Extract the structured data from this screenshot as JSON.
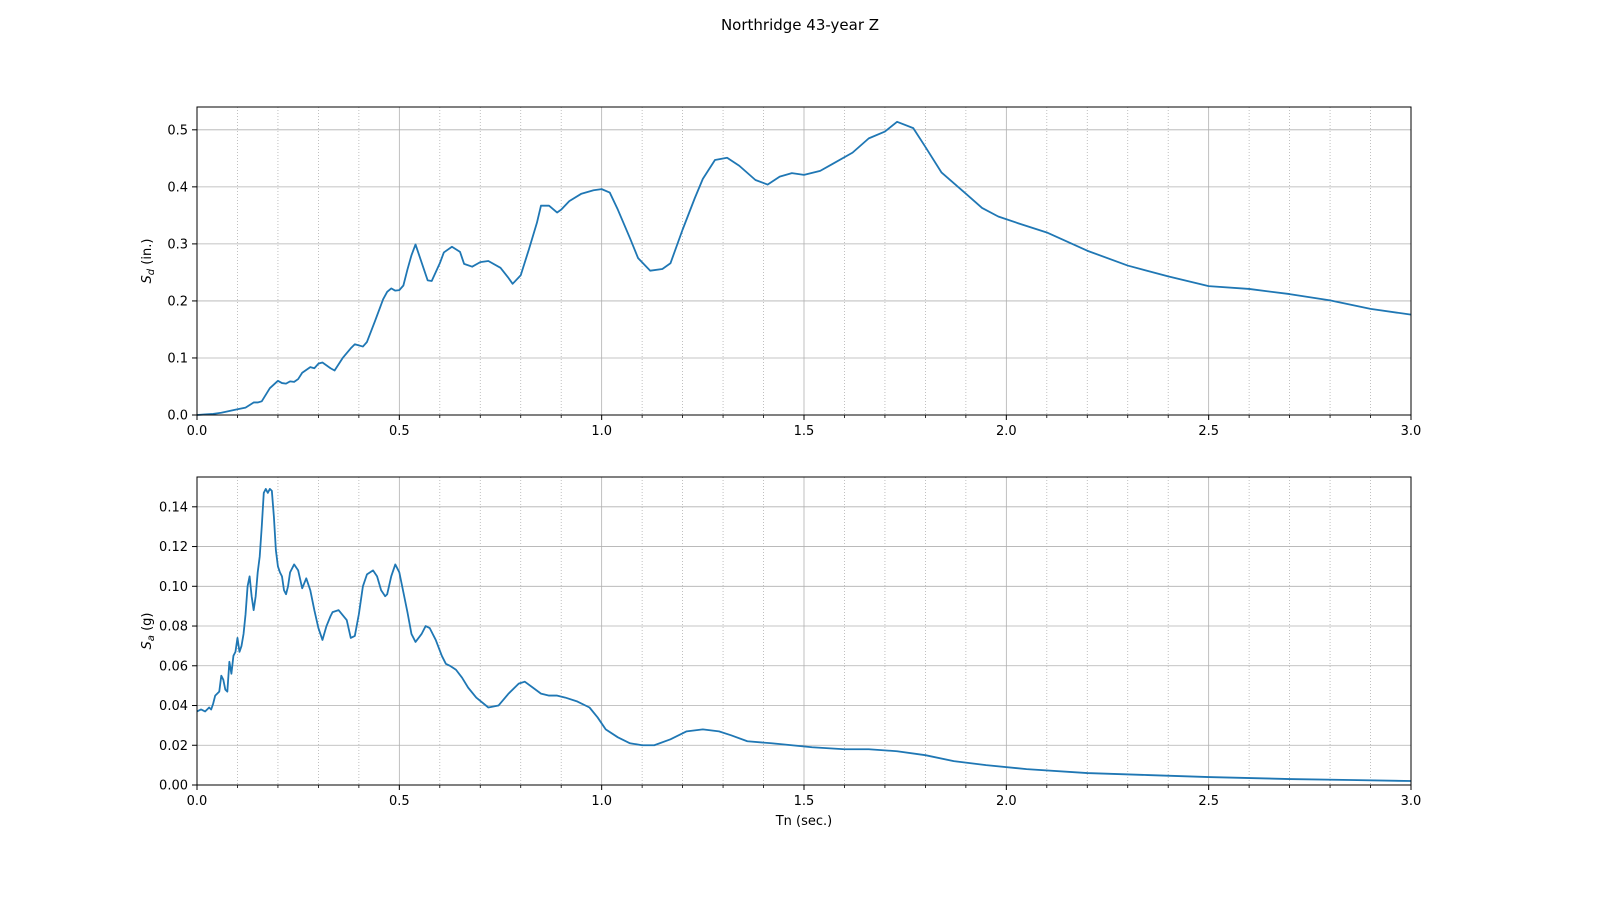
{
  "figure_title": "Northridge 43-year Z",
  "colors": {
    "series": "#1f77b4",
    "grid": "#b0b0b0",
    "axes": "#000000"
  },
  "chart_data": [
    {
      "type": "line",
      "title": "",
      "xlabel": "",
      "ylabel": "Sd (in.)",
      "ylabel_main": "S",
      "ylabel_sub": "d",
      "ylabel_unit": " (in.)",
      "xlim": [
        0.0,
        3.0
      ],
      "ylim": [
        0.0,
        0.54
      ],
      "xticks": [
        0.0,
        0.5,
        1.0,
        1.5,
        2.0,
        2.5,
        3.0
      ],
      "xtick_labels": [
        "0.0",
        "0.5",
        "1.0",
        "1.5",
        "2.0",
        "2.5",
        "3.0"
      ],
      "yticks": [
        0.0,
        0.1,
        0.2,
        0.3,
        0.4,
        0.5
      ],
      "ytick_labels": [
        "0.0",
        "0.1",
        "0.2",
        "0.3",
        "0.4",
        "0.5"
      ],
      "x_minor_step": 0.1,
      "grid": true,
      "series": [
        {
          "x": [
            0.0,
            0.02,
            0.04,
            0.06,
            0.08,
            0.1,
            0.12,
            0.14,
            0.15,
            0.16,
            0.18,
            0.2,
            0.21,
            0.22,
            0.23,
            0.24,
            0.25,
            0.26,
            0.28,
            0.29,
            0.3,
            0.31,
            0.33,
            0.34,
            0.36,
            0.38,
            0.39,
            0.41,
            0.42,
            0.44,
            0.46,
            0.47,
            0.48,
            0.49,
            0.5,
            0.51,
            0.52,
            0.53,
            0.54,
            0.57,
            0.58,
            0.6,
            0.61,
            0.63,
            0.65,
            0.66,
            0.68,
            0.7,
            0.72,
            0.75,
            0.77,
            0.78,
            0.8,
            0.82,
            0.84,
            0.85,
            0.87,
            0.89,
            0.9,
            0.92,
            0.95,
            0.98,
            1.0,
            1.02,
            1.04,
            1.07,
            1.09,
            1.12,
            1.15,
            1.17,
            1.2,
            1.23,
            1.25,
            1.28,
            1.31,
            1.34,
            1.38,
            1.41,
            1.44,
            1.47,
            1.5,
            1.54,
            1.57,
            1.62,
            1.66,
            1.7,
            1.73,
            1.77,
            1.8,
            1.84,
            1.9,
            1.94,
            1.98,
            2.03,
            2.1,
            2.2,
            2.3,
            2.4,
            2.5,
            2.6,
            2.7,
            2.8,
            2.9,
            3.0
          ],
          "y": [
            0.0,
            0.001,
            0.002,
            0.004,
            0.007,
            0.01,
            0.013,
            0.022,
            0.022,
            0.024,
            0.047,
            0.06,
            0.056,
            0.055,
            0.059,
            0.058,
            0.063,
            0.074,
            0.084,
            0.082,
            0.09,
            0.092,
            0.082,
            0.078,
            0.1,
            0.117,
            0.124,
            0.12,
            0.128,
            0.165,
            0.203,
            0.216,
            0.222,
            0.218,
            0.219,
            0.227,
            0.255,
            0.28,
            0.299,
            0.236,
            0.235,
            0.266,
            0.285,
            0.295,
            0.286,
            0.265,
            0.26,
            0.268,
            0.27,
            0.258,
            0.24,
            0.23,
            0.245,
            0.29,
            0.337,
            0.367,
            0.367,
            0.355,
            0.36,
            0.375,
            0.388,
            0.394,
            0.396,
            0.39,
            0.36,
            0.31,
            0.275,
            0.253,
            0.256,
            0.266,
            0.325,
            0.38,
            0.414,
            0.447,
            0.451,
            0.437,
            0.412,
            0.404,
            0.418,
            0.424,
            0.421,
            0.428,
            0.44,
            0.46,
            0.485,
            0.497,
            0.514,
            0.503,
            0.47,
            0.425,
            0.388,
            0.363,
            0.348,
            0.336,
            0.32,
            0.288,
            0.262,
            0.243,
            0.226,
            0.221,
            0.212,
            0.201,
            0.186,
            0.176
          ]
        }
      ]
    },
    {
      "type": "line",
      "title": "",
      "xlabel": "Tn (sec.)",
      "ylabel": "Sa (g)",
      "ylabel_main": "S",
      "ylabel_sub": "a",
      "ylabel_unit": " (g)",
      "xlim": [
        0.0,
        3.0
      ],
      "ylim": [
        0.0,
        0.155
      ],
      "xticks": [
        0.0,
        0.5,
        1.0,
        1.5,
        2.0,
        2.5,
        3.0
      ],
      "xtick_labels": [
        "0.0",
        "0.5",
        "1.0",
        "1.5",
        "2.0",
        "2.5",
        "3.0"
      ],
      "yticks": [
        0.0,
        0.02,
        0.04,
        0.06,
        0.08,
        0.1,
        0.12,
        0.14
      ],
      "ytick_labels": [
        "0.00",
        "0.02",
        "0.04",
        "0.06",
        "0.08",
        "0.10",
        "0.12",
        "0.14"
      ],
      "x_minor_step": 0.1,
      "grid": true,
      "series": [
        {
          "x": [
            0.0,
            0.01,
            0.02,
            0.03,
            0.035,
            0.04,
            0.045,
            0.05,
            0.055,
            0.06,
            0.065,
            0.07,
            0.075,
            0.08,
            0.085,
            0.09,
            0.095,
            0.1,
            0.105,
            0.11,
            0.115,
            0.12,
            0.125,
            0.13,
            0.135,
            0.14,
            0.145,
            0.15,
            0.155,
            0.16,
            0.165,
            0.17,
            0.175,
            0.18,
            0.185,
            0.19,
            0.195,
            0.2,
            0.205,
            0.21,
            0.215,
            0.22,
            0.225,
            0.23,
            0.24,
            0.25,
            0.26,
            0.27,
            0.28,
            0.29,
            0.3,
            0.31,
            0.32,
            0.33,
            0.335,
            0.35,
            0.37,
            0.38,
            0.39,
            0.4,
            0.41,
            0.42,
            0.435,
            0.445,
            0.455,
            0.465,
            0.47,
            0.48,
            0.49,
            0.5,
            0.51,
            0.52,
            0.53,
            0.54,
            0.555,
            0.565,
            0.575,
            0.59,
            0.605,
            0.615,
            0.625,
            0.64,
            0.655,
            0.67,
            0.69,
            0.72,
            0.745,
            0.77,
            0.795,
            0.81,
            0.83,
            0.85,
            0.87,
            0.89,
            0.91,
            0.94,
            0.97,
            0.99,
            1.01,
            1.04,
            1.07,
            1.1,
            1.13,
            1.17,
            1.21,
            1.25,
            1.29,
            1.32,
            1.36,
            1.42,
            1.47,
            1.52,
            1.6,
            1.66,
            1.73,
            1.8,
            1.87,
            1.95,
            2.05,
            2.2,
            2.35,
            2.5,
            2.7,
            2.85,
            3.0
          ],
          "y": [
            0.037,
            0.038,
            0.037,
            0.039,
            0.038,
            0.041,
            0.045,
            0.046,
            0.047,
            0.055,
            0.053,
            0.048,
            0.047,
            0.062,
            0.056,
            0.065,
            0.067,
            0.074,
            0.067,
            0.07,
            0.076,
            0.086,
            0.1,
            0.105,
            0.095,
            0.088,
            0.095,
            0.107,
            0.115,
            0.13,
            0.147,
            0.149,
            0.147,
            0.149,
            0.148,
            0.135,
            0.118,
            0.11,
            0.107,
            0.105,
            0.098,
            0.096,
            0.1,
            0.107,
            0.111,
            0.108,
            0.099,
            0.104,
            0.098,
            0.088,
            0.079,
            0.073,
            0.08,
            0.085,
            0.087,
            0.088,
            0.083,
            0.074,
            0.075,
            0.086,
            0.1,
            0.106,
            0.108,
            0.105,
            0.098,
            0.095,
            0.096,
            0.105,
            0.111,
            0.107,
            0.097,
            0.087,
            0.076,
            0.072,
            0.076,
            0.08,
            0.079,
            0.073,
            0.065,
            0.061,
            0.06,
            0.058,
            0.054,
            0.049,
            0.044,
            0.039,
            0.04,
            0.046,
            0.051,
            0.052,
            0.049,
            0.046,
            0.045,
            0.045,
            0.044,
            0.042,
            0.039,
            0.034,
            0.028,
            0.024,
            0.021,
            0.02,
            0.02,
            0.023,
            0.027,
            0.028,
            0.027,
            0.025,
            0.022,
            0.021,
            0.02,
            0.019,
            0.018,
            0.018,
            0.017,
            0.015,
            0.012,
            0.01,
            0.008,
            0.006,
            0.005,
            0.004,
            0.003,
            0.0025,
            0.002
          ]
        }
      ]
    }
  ]
}
